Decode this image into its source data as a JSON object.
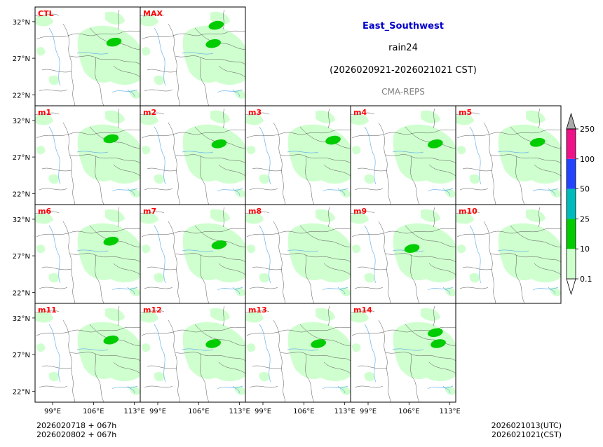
{
  "header": {
    "region": "East_Southwest",
    "variable": "rain24",
    "period": "(2026020921-2026021021 CST)",
    "model": "CMA-REPS"
  },
  "footer": {
    "init_utc": "2026020718  +  067h",
    "init_cst": "2026020802  +  067h",
    "valid_utc": "2026021013(UTC)",
    "valid_cst": "2026021021(CST)"
  },
  "colors": {
    "title": "#0000cc",
    "panel_label": "#ff0000",
    "model_text": "#808080",
    "bins": [
      "#ccffcc",
      "#00cc00",
      "#00bbbb",
      "#2244ff",
      "#ee1188",
      "#aaaaaa"
    ]
  },
  "chart_data": {
    "type": "heatmap",
    "title": "East_Southwest rain24",
    "lon_ticks": [
      99,
      106,
      113
    ],
    "lon_tick_labels": [
      "99°E",
      "106°E",
      "113°E"
    ],
    "lat_ticks": [
      32,
      27,
      22
    ],
    "lat_tick_labels": [
      "32°N",
      "27°N",
      "22°N"
    ],
    "lon_range": [
      96,
      114
    ],
    "lat_range": [
      20.5,
      34
    ],
    "colorbar": {
      "levels": [
        0.1,
        10,
        25,
        50,
        100,
        250
      ],
      "labels": [
        "0.1",
        "10",
        "25",
        "50",
        "100",
        "250"
      ],
      "extend": "both"
    },
    "panels": [
      {
        "label": "CTL",
        "row": 0,
        "col": 0,
        "spots": [
          {
            "lon": 109.5,
            "lat": 29.2,
            "level": 10
          }
        ]
      },
      {
        "label": "MAX",
        "row": 0,
        "col": 1,
        "spots": [
          {
            "lon": 108.5,
            "lat": 29.0,
            "level": 10
          },
          {
            "lon": 109.0,
            "lat": 31.5,
            "level": 10
          }
        ]
      },
      {
        "label": "m1",
        "row": 1,
        "col": 0,
        "spots": [
          {
            "lon": 109.0,
            "lat": 29.5,
            "level": 10
          }
        ]
      },
      {
        "label": "m2",
        "row": 1,
        "col": 1,
        "spots": [
          {
            "lon": 109.5,
            "lat": 28.8,
            "level": 10
          }
        ]
      },
      {
        "label": "m3",
        "row": 1,
        "col": 2,
        "spots": [
          {
            "lon": 111.0,
            "lat": 29.3,
            "level": 10
          }
        ]
      },
      {
        "label": "m4",
        "row": 1,
        "col": 3,
        "spots": [
          {
            "lon": 110.5,
            "lat": 28.8,
            "level": 10
          }
        ]
      },
      {
        "label": "m5",
        "row": 1,
        "col": 4,
        "spots": [
          {
            "lon": 110.0,
            "lat": 29.0,
            "level": 10
          }
        ]
      },
      {
        "label": "m6",
        "row": 2,
        "col": 0,
        "spots": [
          {
            "lon": 109.0,
            "lat": 29.0,
            "level": 10
          }
        ]
      },
      {
        "label": "m7",
        "row": 2,
        "col": 1,
        "spots": [
          {
            "lon": 109.5,
            "lat": 28.5,
            "level": 10
          }
        ]
      },
      {
        "label": "m8",
        "row": 2,
        "col": 2,
        "spots": []
      },
      {
        "label": "m9",
        "row": 2,
        "col": 3,
        "spots": [
          {
            "lon": 106.5,
            "lat": 28.0,
            "level": 10
          }
        ]
      },
      {
        "label": "m10",
        "row": 2,
        "col": 4,
        "spots": []
      },
      {
        "label": "m11",
        "row": 3,
        "col": 0,
        "spots": [
          {
            "lon": 109.0,
            "lat": 29.0,
            "level": 10
          }
        ]
      },
      {
        "label": "m12",
        "row": 3,
        "col": 1,
        "spots": [
          {
            "lon": 108.5,
            "lat": 28.5,
            "level": 10
          }
        ]
      },
      {
        "label": "m13",
        "row": 3,
        "col": 2,
        "spots": [
          {
            "lon": 108.5,
            "lat": 28.5,
            "level": 10
          }
        ]
      },
      {
        "label": "m14",
        "row": 3,
        "col": 3,
        "spots": [
          {
            "lon": 110.5,
            "lat": 30.0,
            "level": 10
          },
          {
            "lon": 111.0,
            "lat": 28.5,
            "level": 10
          }
        ]
      }
    ]
  }
}
